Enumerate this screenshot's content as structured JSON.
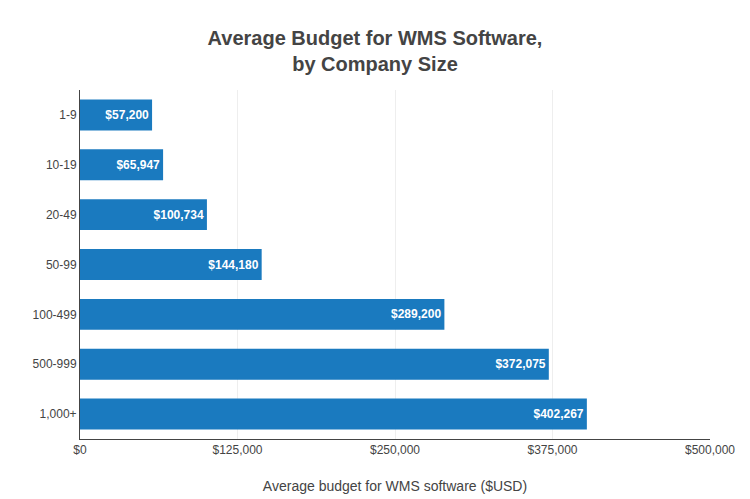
{
  "chart_data": {
    "type": "bar",
    "orientation": "horizontal",
    "title": "Average Budget for WMS Software,\nby Company Size",
    "xlabel": "Average budget for WMS software ($USD)",
    "categories": [
      "1-9",
      "10-19",
      "20-49",
      "50-99",
      "100-499",
      "500-999",
      "1,000+"
    ],
    "values": [
      57200,
      65947,
      100734,
      144180,
      289200,
      372075,
      402267
    ],
    "value_labels": [
      "$57,200",
      "$65,947",
      "$100,734",
      "$144,180",
      "$289,200",
      "$372,075",
      "$402,267"
    ],
    "data_labels": true,
    "color": "#1a7abf",
    "xlim": [
      0,
      500000
    ],
    "xticks": [
      {
        "value": 0,
        "label": "$0"
      },
      {
        "value": 125000,
        "label": "$125,000"
      },
      {
        "value": 250000,
        "label": "$250,000"
      },
      {
        "value": 375000,
        "label": "$375,000"
      },
      {
        "value": 500000,
        "label": "$500,000"
      }
    ],
    "grid": true
  }
}
